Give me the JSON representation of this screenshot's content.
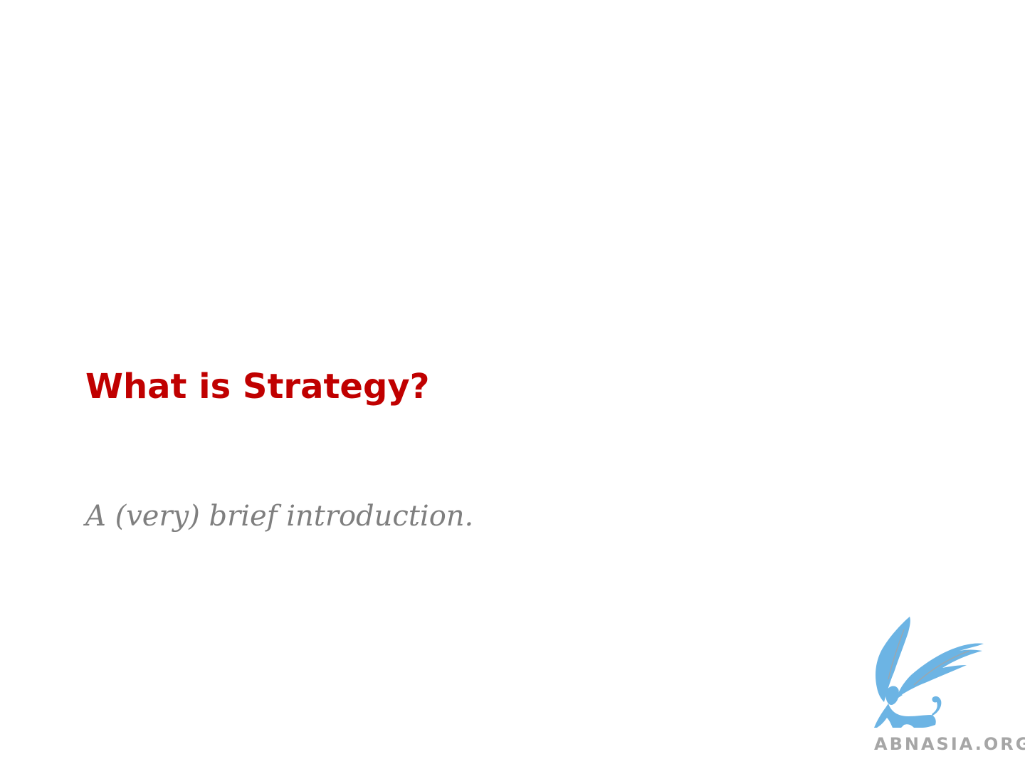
{
  "slide": {
    "title": "What is Strategy?",
    "subtitle": "A (very) brief introduction."
  },
  "logo": {
    "icon": "griffin-logo-icon"
  },
  "watermark": {
    "text": "ABNASIA.ORG"
  },
  "colors": {
    "background": "#ffffff",
    "title": "#c00000",
    "subtitle": "#7f7f7f",
    "logo": "#6cb4e4",
    "watermark": "#a6a6a6"
  }
}
